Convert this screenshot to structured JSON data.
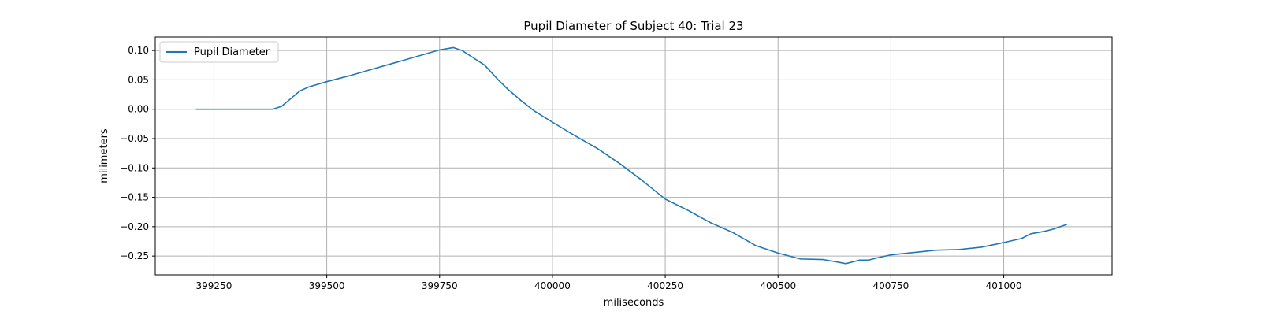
{
  "chart_data": {
    "type": "line",
    "title": "Pupil Diameter of Subject 40: Trial 23",
    "xlabel": "miliseconds",
    "ylabel": "milimeters",
    "xlim": [
      399120,
      401240
    ],
    "ylim": [
      -0.282,
      0.123
    ],
    "xticks": [
      399250,
      399500,
      399750,
      400000,
      400250,
      400500,
      400750,
      401000
    ],
    "yticks": [
      0.1,
      0.05,
      0.0,
      -0.05,
      -0.1,
      -0.15,
      -0.2,
      -0.25
    ],
    "ytick_labels": [
      "0.10",
      "0.05",
      "0.00",
      "−0.05",
      "−0.10",
      "−0.15",
      "−0.20",
      "−0.25"
    ],
    "grid": true,
    "legend_position": "top-left",
    "series": [
      {
        "name": "Pupil Diameter",
        "color": "#1f77b4",
        "x": [
          399210,
          399300,
          399380,
          399400,
          399420,
          399440,
          399460,
          399500,
          399550,
          399600,
          399650,
          399700,
          399750,
          399780,
          399800,
          399820,
          399850,
          399880,
          399900,
          399930,
          399960,
          400000,
          400050,
          400100,
          400150,
          400200,
          400250,
          400300,
          400350,
          400400,
          400450,
          400500,
          400550,
          400600,
          400630,
          400650,
          400680,
          400700,
          400720,
          400750,
          400800,
          400850,
          400900,
          400950,
          401000,
          401040,
          401060,
          401090,
          401110,
          401140
        ],
        "y": [
          0.0,
          0.0,
          0.0,
          0.005,
          0.018,
          0.031,
          0.038,
          0.047,
          0.057,
          0.068,
          0.079,
          0.09,
          0.101,
          0.105,
          0.1,
          0.09,
          0.075,
          0.05,
          0.035,
          0.015,
          -0.003,
          -0.022,
          -0.045,
          -0.067,
          -0.093,
          -0.122,
          -0.153,
          -0.172,
          -0.193,
          -0.21,
          -0.232,
          -0.245,
          -0.255,
          -0.256,
          -0.26,
          -0.263,
          -0.257,
          -0.257,
          -0.253,
          -0.248,
          -0.244,
          -0.24,
          -0.239,
          -0.235,
          -0.227,
          -0.22,
          -0.212,
          -0.208,
          -0.204,
          -0.196
        ]
      }
    ]
  }
}
